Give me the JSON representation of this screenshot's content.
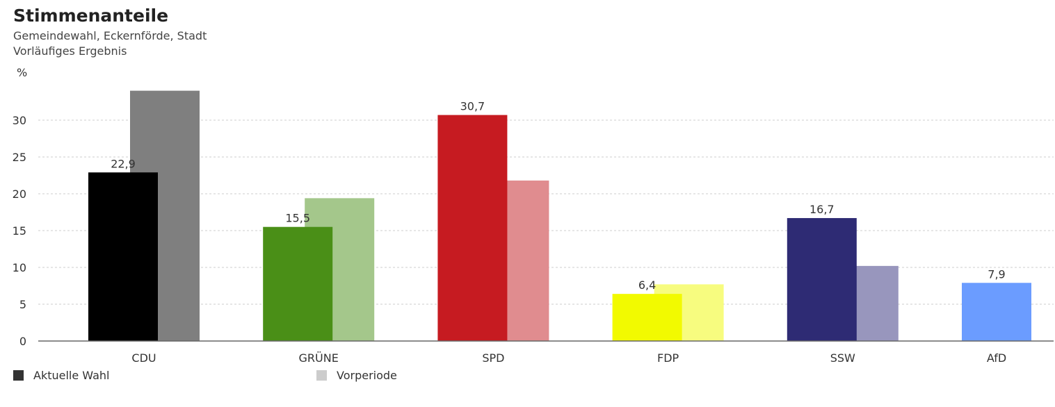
{
  "header": {
    "title": "Stimmenanteile",
    "subtitle1": "Gemeindewahl, Eckernförde, Stadt",
    "subtitle2": "Vorläufiges Ergebnis"
  },
  "legend": {
    "current_label": "Aktuelle Wahl",
    "previous_label": "Vorperiode",
    "current_color": "#333333",
    "previous_color": "#cccccc"
  },
  "chart_data": {
    "type": "bar",
    "ylabel": "%",
    "ylim": [
      0,
      34
    ],
    "yticks": [
      0,
      5,
      10,
      15,
      20,
      25,
      30
    ],
    "grid": true,
    "legend_position": "bottom-left",
    "categories": [
      "CDU",
      "GRÜNE",
      "SPD",
      "FDP",
      "SSW",
      "AfD"
    ],
    "series": [
      {
        "name": "Aktuelle Wahl",
        "values": [
          22.9,
          15.5,
          30.7,
          6.4,
          16.7,
          7.9
        ],
        "labels": [
          "22,9",
          "15,5",
          "30,7",
          "6,4",
          "16,7",
          "7,9"
        ],
        "colors": [
          "#000000",
          "#4a8f17",
          "#c61b21",
          "#f2fa00",
          "#2e2b74",
          "#6b9cff"
        ]
      },
      {
        "name": "Vorperiode",
        "values": [
          34.0,
          19.4,
          21.8,
          7.7,
          10.2,
          null
        ],
        "colors": [
          "#7f7f7f",
          "#a4c78b",
          "#e08c8f",
          "#f7fc7f",
          "#9896bd",
          null
        ]
      }
    ]
  }
}
